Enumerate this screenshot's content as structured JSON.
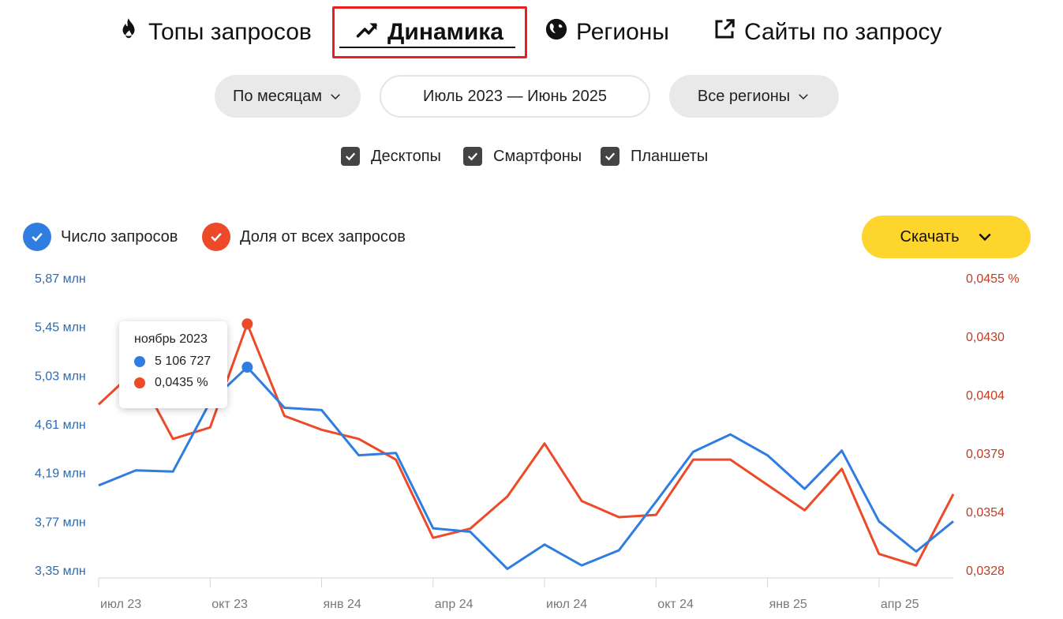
{
  "tabs": [
    {
      "label": "Топы запросов",
      "icon": "fire-icon"
    },
    {
      "label": "Динамика",
      "icon": "trend-up-icon"
    },
    {
      "label": "Регионы",
      "icon": "globe-icon"
    },
    {
      "label": "Сайты по запросу",
      "icon": "external-link-icon"
    }
  ],
  "filters": {
    "period_label": "По месяцам",
    "range_label": "Июль 2023 — Июнь 2025",
    "region_label": "Все регионы"
  },
  "devices": [
    {
      "label": "Десктопы",
      "checked": true
    },
    {
      "label": "Смартфоны",
      "checked": true
    },
    {
      "label": "Планшеты",
      "checked": true
    }
  ],
  "legend": {
    "count_label": "Число запросов",
    "share_label": "Доля от всех запросов"
  },
  "download_label": "Скачать",
  "colors": {
    "count": "#2f7de1",
    "share": "#ec4a28",
    "count_axis": "#2a6bb5",
    "share_axis": "#c23b22",
    "accent": "#fdd52c",
    "highlight_border": "#e8201f"
  },
  "tooltip": {
    "title": "ноябрь 2023",
    "count_value": "5 106 727",
    "share_value": "0,0435 %"
  },
  "chart_data": {
    "type": "line",
    "x": [
      "июл 2023",
      "авг 2023",
      "сен 2023",
      "окт 2023",
      "ноя 2023",
      "дек 2023",
      "янв 2024",
      "фев 2024",
      "мар 2024",
      "апр 2024",
      "май 2024",
      "июн 2024",
      "июл 2024",
      "авг 2024",
      "сен 2024",
      "окт 2024",
      "ноя 2024",
      "дек 2024",
      "янв 2025",
      "фев 2025",
      "мар 2025",
      "апр 2025",
      "май 2025",
      "июн 2025"
    ],
    "x_tick_labels": [
      "июл 23",
      "окт 23",
      "янв 24",
      "апр 24",
      "июл 24",
      "окт 24",
      "янв 25",
      "апр 25"
    ],
    "series": [
      {
        "name": "Число запросов",
        "axis": "left",
        "values": [
          4.08,
          4.21,
          4.2,
          4.8,
          5.1,
          4.75,
          4.73,
          4.34,
          4.36,
          3.71,
          3.68,
          3.36,
          3.57,
          3.39,
          3.52,
          3.94,
          4.37,
          4.52,
          4.34,
          4.05,
          4.38,
          3.77,
          3.51,
          3.77
        ]
      },
      {
        "name": "Доля от всех запросов",
        "axis": "right",
        "values": [
          0.04,
          0.0415,
          0.0385,
          0.039,
          0.0435,
          0.0395,
          0.0389,
          0.0385,
          0.0376,
          0.0342,
          0.0346,
          0.036,
          0.0383,
          0.0358,
          0.0351,
          0.0352,
          0.0376,
          0.0376,
          0.0365,
          0.0354,
          0.0372,
          0.0335,
          0.033,
          0.0361
        ]
      }
    ],
    "y_left_ticks": [
      "5,87 млн",
      "5,45 млн",
      "5,03 млн",
      "4,61 млн",
      "4,19 млн",
      "3,77 млн",
      "3,35 млн"
    ],
    "y_left_range": [
      3.35,
      5.87
    ],
    "y_right_ticks": [
      "0,0455 %",
      "0,0430",
      "0,0404",
      "0,0379",
      "0,0354",
      "0,0328"
    ],
    "y_right_range": [
      0.0328,
      0.0455
    ],
    "highlighted_index": 4,
    "grid": false
  }
}
